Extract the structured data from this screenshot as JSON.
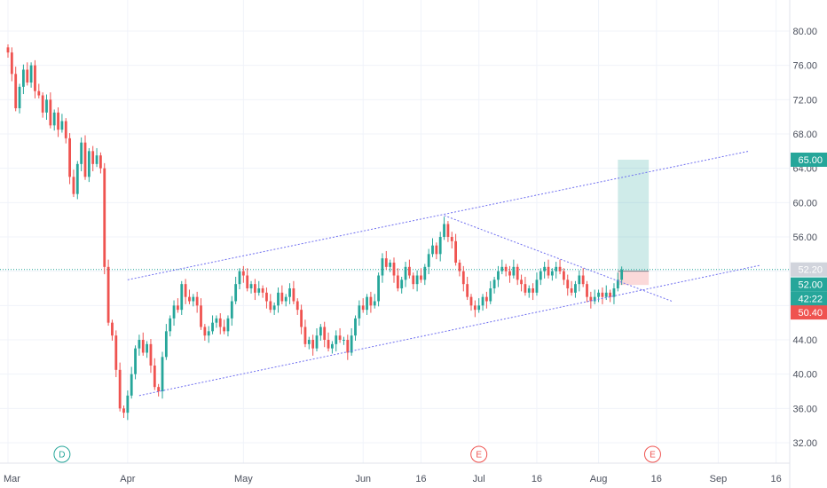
{
  "chart_data": {
    "type": "candlestick",
    "y_axis": {
      "range": [
        30,
        84
      ],
      "ticks": [
        "32.00",
        "36.00",
        "40.00",
        "44.00",
        "48.00",
        "52.00",
        "56.00",
        "60.00",
        "64.00",
        "68.00",
        "72.00",
        "76.00",
        "80.00"
      ],
      "tick_values": [
        32,
        36,
        40,
        44,
        48,
        52,
        56,
        60,
        64,
        68,
        72,
        76,
        80
      ]
    },
    "x_axis": {
      "ticks": [
        {
          "label": "Mar",
          "date": "Mar 1"
        },
        {
          "label": "Apr",
          "date": "Apr 1"
        },
        {
          "label": "May",
          "date": "May 1"
        },
        {
          "label": "Jun",
          "date": "Jun 1"
        },
        {
          "label": "16",
          "date": "Jun 16"
        },
        {
          "label": "Jul",
          "date": "Jul 1"
        },
        {
          "label": "16",
          "date": "Jul 16"
        },
        {
          "label": "Aug",
          "date": "Aug 1"
        },
        {
          "label": "16",
          "date": "Aug 16"
        },
        {
          "label": "Sep",
          "date": "Sep 1"
        },
        {
          "label": "16",
          "date": "Sep 16"
        }
      ]
    },
    "colors": {
      "up": "#26a69a",
      "down": "#ef5350",
      "trendline": "#6f6ff0",
      "grid": "#f0f3fa"
    },
    "candles": [
      {
        "date": "Mar 1",
        "close": 77.5
      },
      {
        "date": "Mar 2",
        "close": 75.0
      },
      {
        "date": "Mar 3",
        "close": 71.0
      },
      {
        "date": "Mar 4",
        "close": 73.5
      },
      {
        "date": "Mar 5",
        "close": 75.5
      },
      {
        "date": "Mar 6",
        "close": 74.0
      },
      {
        "date": "Mar 7",
        "close": 76.0
      },
      {
        "date": "Mar 8",
        "close": 73.0
      },
      {
        "date": "Mar 9",
        "close": 72.5
      },
      {
        "date": "Mar 10",
        "close": 70.5
      },
      {
        "date": "Mar 11",
        "close": 72.0
      },
      {
        "date": "Mar 12",
        "close": 69.0
      },
      {
        "date": "Mar 13",
        "close": 70.5
      },
      {
        "date": "Mar 14",
        "close": 68.5
      },
      {
        "date": "Mar 15",
        "close": 69.5
      },
      {
        "date": "Mar 16",
        "close": 67.5
      },
      {
        "date": "Mar 17",
        "close": 63.0
      },
      {
        "date": "Mar 18",
        "close": 61.0
      },
      {
        "date": "Mar 19",
        "close": 64.5
      },
      {
        "date": "Mar 20",
        "close": 67.0
      },
      {
        "date": "Mar 21",
        "close": 63.0
      },
      {
        "date": "Mar 22",
        "close": 66.0
      },
      {
        "date": "Mar 23",
        "close": 64.5
      },
      {
        "date": "Mar 24",
        "close": 65.5
      },
      {
        "date": "Mar 25",
        "close": 64.0
      },
      {
        "date": "Mar 26",
        "close": 52.5
      },
      {
        "date": "Mar 27",
        "close": 46.0
      },
      {
        "date": "Mar 28",
        "close": 44.5
      },
      {
        "date": "Mar 29",
        "close": 40.5
      },
      {
        "date": "Mar 30",
        "close": 36.0
      },
      {
        "date": "Mar 31",
        "close": 35.5
      },
      {
        "date": "Apr 1",
        "close": 37.5
      },
      {
        "date": "Apr 2",
        "close": 40.0
      },
      {
        "date": "Apr 3",
        "close": 43.0
      },
      {
        "date": "Apr 4",
        "close": 44.0
      },
      {
        "date": "Apr 5",
        "close": 42.5
      },
      {
        "date": "Apr 6",
        "close": 43.5
      },
      {
        "date": "Apr 7",
        "close": 41.0
      },
      {
        "date": "Apr 8",
        "close": 38.5
      },
      {
        "date": "Apr 9",
        "close": 38.0
      },
      {
        "date": "Apr 10",
        "close": 42.0
      },
      {
        "date": "Apr 11",
        "close": 45.0
      },
      {
        "date": "Apr 12",
        "close": 46.5
      },
      {
        "date": "Apr 13",
        "close": 48.0
      },
      {
        "date": "Apr 14",
        "close": 47.5
      },
      {
        "date": "Apr 15",
        "close": 50.5
      },
      {
        "date": "Apr 16",
        "close": 49.0
      },
      {
        "date": "Apr 17",
        "close": 48.5
      },
      {
        "date": "Apr 18",
        "close": 49.0
      },
      {
        "date": "Apr 19",
        "close": 48.0
      },
      {
        "date": "Apr 20",
        "close": 45.5
      },
      {
        "date": "Apr 21",
        "close": 44.5
      },
      {
        "date": "Apr 22",
        "close": 45.0
      },
      {
        "date": "Apr 23",
        "close": 46.0
      },
      {
        "date": "Apr 24",
        "close": 46.5
      },
      {
        "date": "Apr 25",
        "close": 45.5
      },
      {
        "date": "Apr 26",
        "close": 45.0
      },
      {
        "date": "Apr 27",
        "close": 46.5
      },
      {
        "date": "Apr 28",
        "close": 48.5
      },
      {
        "date": "Apr 29",
        "close": 50.5
      },
      {
        "date": "Apr 30",
        "close": 52.0
      },
      {
        "date": "May 1",
        "close": 51.5
      },
      {
        "date": "May 2",
        "close": 50.0
      },
      {
        "date": "May 3",
        "close": 50.5
      },
      {
        "date": "May 4",
        "close": 49.5
      },
      {
        "date": "May 5",
        "close": 50.0
      },
      {
        "date": "May 6",
        "close": 49.5
      },
      {
        "date": "May 7",
        "close": 48.5
      },
      {
        "date": "May 8",
        "close": 47.5
      },
      {
        "date": "May 9",
        "close": 48.0
      },
      {
        "date": "May 10",
        "close": 49.5
      },
      {
        "date": "May 11",
        "close": 48.5
      },
      {
        "date": "May 12",
        "close": 49.0
      },
      {
        "date": "May 13",
        "close": 50.0
      },
      {
        "date": "May 14",
        "close": 48.5
      },
      {
        "date": "May 15",
        "close": 47.5
      },
      {
        "date": "May 16",
        "close": 45.5
      },
      {
        "date": "May 17",
        "close": 43.5
      },
      {
        "date": "May 18",
        "close": 44.0
      },
      {
        "date": "May 19",
        "close": 43.0
      },
      {
        "date": "May 20",
        "close": 44.5
      },
      {
        "date": "May 21",
        "close": 45.5
      },
      {
        "date": "May 22",
        "close": 44.0
      },
      {
        "date": "May 23",
        "close": 43.0
      },
      {
        "date": "May 24",
        "close": 43.5
      },
      {
        "date": "May 25",
        "close": 44.5
      },
      {
        "date": "May 26",
        "close": 44.0
      },
      {
        "date": "May 27",
        "close": 44.0
      },
      {
        "date": "May 28",
        "close": 42.5
      },
      {
        "date": "May 29",
        "close": 44.5
      },
      {
        "date": "May 30",
        "close": 46.5
      },
      {
        "date": "May 31",
        "close": 48.0
      },
      {
        "date": "Jun 1",
        "close": 47.5
      },
      {
        "date": "Jun 2",
        "close": 49.0
      },
      {
        "date": "Jun 3",
        "close": 48.0
      },
      {
        "date": "Jun 4",
        "close": 48.5
      },
      {
        "date": "Jun 5",
        "close": 51.5
      },
      {
        "date": "Jun 6",
        "close": 53.5
      },
      {
        "date": "Jun 7",
        "close": 52.5
      },
      {
        "date": "Jun 8",
        "close": 53.0
      },
      {
        "date": "Jun 9",
        "close": 51.5
      },
      {
        "date": "Jun 10",
        "close": 50.0
      },
      {
        "date": "Jun 11",
        "close": 51.0
      },
      {
        "date": "Jun 12",
        "close": 52.5
      },
      {
        "date": "Jun 13",
        "close": 51.5
      },
      {
        "date": "Jun 14",
        "close": 50.5
      },
      {
        "date": "Jun 15",
        "close": 51.5
      },
      {
        "date": "Jun 16",
        "close": 51.0
      },
      {
        "date": "Jun 17",
        "close": 52.5
      },
      {
        "date": "Jun 18",
        "close": 54.0
      },
      {
        "date": "Jun 19",
        "close": 55.0
      },
      {
        "date": "Jun 20",
        "close": 54.0
      },
      {
        "date": "Jun 21",
        "close": 56.0
      },
      {
        "date": "Jun 22",
        "close": 57.5
      },
      {
        "date": "Jun 23",
        "close": 56.0
      },
      {
        "date": "Jun 24",
        "close": 55.5
      },
      {
        "date": "Jun 25",
        "close": 53.0
      },
      {
        "date": "Jun 26",
        "close": 52.0
      },
      {
        "date": "Jun 27",
        "close": 50.5
      },
      {
        "date": "Jun 28",
        "close": 49.0
      },
      {
        "date": "Jun 29",
        "close": 48.0
      },
      {
        "date": "Jun 30",
        "close": 47.5
      },
      {
        "date": "Jul 1",
        "close": 48.0
      },
      {
        "date": "Jul 2",
        "close": 49.0
      },
      {
        "date": "Jul 3",
        "close": 48.5
      },
      {
        "date": "Jul 4",
        "close": 50.0
      },
      {
        "date": "Jul 5",
        "close": 51.0
      },
      {
        "date": "Jul 6",
        "close": 52.0
      },
      {
        "date": "Jul 7",
        "close": 52.5
      },
      {
        "date": "Jul 8",
        "close": 52.0
      },
      {
        "date": "Jul 9",
        "close": 51.5
      },
      {
        "date": "Jul 10",
        "close": 52.5
      },
      {
        "date": "Jul 11",
        "close": 51.0
      },
      {
        "date": "Jul 12",
        "close": 50.5
      },
      {
        "date": "Jul 13",
        "close": 49.5
      },
      {
        "date": "Jul 14",
        "close": 50.0
      },
      {
        "date": "Jul 15",
        "close": 49.5
      },
      {
        "date": "Jul 16",
        "close": 51.0
      },
      {
        "date": "Jul 17",
        "close": 52.0
      },
      {
        "date": "Jul 18",
        "close": 52.5
      },
      {
        "date": "Jul 19",
        "close": 51.5
      },
      {
        "date": "Jul 20",
        "close": 52.0
      },
      {
        "date": "Jul 21",
        "close": 52.5
      },
      {
        "date": "Jul 22",
        "close": 52.0
      },
      {
        "date": "Jul 23",
        "close": 51.0
      },
      {
        "date": "Jul 24",
        "close": 50.0
      },
      {
        "date": "Jul 25",
        "close": 49.5
      },
      {
        "date": "Jul 26",
        "close": 50.5
      },
      {
        "date": "Jul 27",
        "close": 51.5
      },
      {
        "date": "Jul 28",
        "close": 50.5
      },
      {
        "date": "Jul 29",
        "close": 49.0
      },
      {
        "date": "Jul 30",
        "close": 48.5
      },
      {
        "date": "Jul 31",
        "close": 49.0
      },
      {
        "date": "Aug 1",
        "close": 49.5
      },
      {
        "date": "Aug 2",
        "close": 49.0
      },
      {
        "date": "Aug 3",
        "close": 49.5
      },
      {
        "date": "Aug 4",
        "close": 49.0
      },
      {
        "date": "Aug 5",
        "close": 50.0
      },
      {
        "date": "Aug 6",
        "close": 51.0
      },
      {
        "date": "Aug 7",
        "close": 52.2
      }
    ],
    "lines": [
      {
        "name": "channel-upper",
        "from": {
          "date": "Apr 1",
          "price": 51.0
        },
        "to": {
          "date": "Sep 9",
          "price": 66.0
        }
      },
      {
        "name": "channel-lower",
        "from": {
          "date": "Apr 4",
          "price": 37.5
        },
        "to": {
          "date": "Sep 12",
          "price": 52.7
        }
      },
      {
        "name": "descending-line",
        "from": {
          "date": "Jun 22",
          "price": 58.5
        },
        "to": {
          "date": "Aug 20",
          "price": 48.5
        }
      }
    ],
    "horizontal_line": {
      "price": 52.2
    },
    "position": {
      "from_date": "Aug 6",
      "to_date": "Aug 14",
      "entry": 52.0,
      "target": 65.0,
      "stop": 50.4
    },
    "price_tags": [
      {
        "label": "65.00",
        "price": 65.0,
        "color": "#26a69a"
      },
      {
        "label": "52.20",
        "price": 52.2,
        "color": "#d1d4dc"
      },
      {
        "label": "52.00",
        "price": 52.0,
        "color": "#26a69a"
      },
      {
        "label": "42:22",
        "price": 50.0,
        "color": "#26a69a"
      },
      {
        "label": "50.40",
        "price": 50.4,
        "color": "#ef5350"
      }
    ],
    "events": [
      {
        "label": "D",
        "date": "Mar 15",
        "color": "#26a69a"
      },
      {
        "label": "E",
        "date": "Jul 1",
        "color": "#ef5350"
      },
      {
        "label": "E",
        "date": "Aug 15",
        "color": "#ef5350"
      }
    ]
  }
}
